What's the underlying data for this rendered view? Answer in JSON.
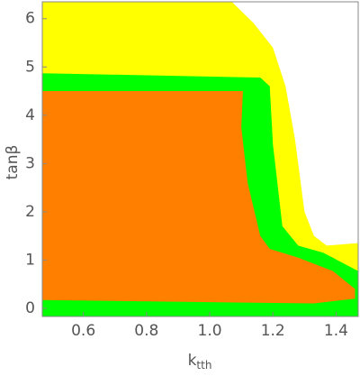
{
  "chart_data": {
    "type": "region",
    "xlabel": "k",
    "xlabel_sub": "tth",
    "ylabel": "tanβ",
    "xlim": [
      0.47,
      1.47
    ],
    "ylim": [
      -0.17,
      6.35
    ],
    "xticks": [
      0.6,
      0.8,
      {
        "value": 1,
        "label": "1.0"
      },
      1.2,
      1.4
    ],
    "yticks": [
      0,
      1,
      2,
      3,
      4,
      5,
      6
    ],
    "series": [
      {
        "color": "#ffff00",
        "x": [
          0.47,
          0.47,
          1.07,
          1.14,
          1.2,
          1.24,
          1.27,
          1.29,
          1.3,
          1.33,
          1.37,
          1.47,
          1.47
        ],
        "y": [
          -0.17,
          6.35,
          6.35,
          5.9,
          5.4,
          4.6,
          3.5,
          2.5,
          2.0,
          1.5,
          1.3,
          1.35,
          -0.17
        ]
      },
      {
        "color": "#00ff00",
        "x": [
          0.47,
          0.47,
          1.16,
          1.19,
          1.2,
          1.23,
          1.28,
          1.36,
          1.47,
          1.47
        ],
        "y": [
          -0.17,
          4.87,
          4.78,
          4.6,
          3.4,
          1.7,
          1.3,
          1.15,
          0.77,
          -0.17
        ]
      },
      {
        "color": "#ff8000",
        "x": [
          0.47,
          0.47,
          1.105,
          1.1,
          1.12,
          1.16,
          1.19,
          1.28,
          1.39,
          1.46,
          1.46,
          1.33
        ],
        "y": [
          0.17,
          4.5,
          4.5,
          3.75,
          2.6,
          1.5,
          1.23,
          1.05,
          0.77,
          0.4,
          0.2,
          0.1
        ]
      }
    ]
  }
}
